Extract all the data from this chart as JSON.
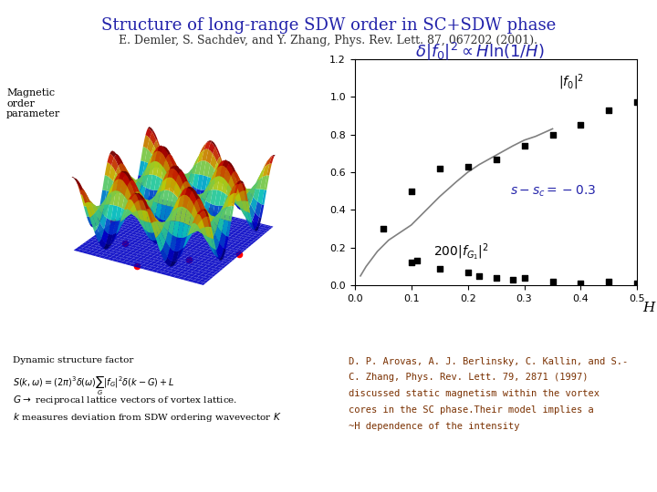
{
  "title": "Structure of long-range SDW order in SC+SDW phase",
  "subtitle": "E. Demler, S. Sachdev, and Y. Zhang, Phys. Rev. Lett. 87, 067202 (2001).",
  "bg_color": "#ffffff",
  "title_color": "#2222aa",
  "subtitle_color": "#333333",
  "magnetic_label": "Magnetic\norder\nparameter",
  "formula": "$\\delta|f_0|^2 \\propto H\\ln(1/H)$",
  "formula_color": "#2222aa",
  "scatter_f0_x": [
    0.05,
    0.1,
    0.15,
    0.2,
    0.25,
    0.3,
    0.35,
    0.4,
    0.45,
    0.5
  ],
  "scatter_f0_y": [
    0.3,
    0.5,
    0.62,
    0.63,
    0.67,
    0.74,
    0.8,
    0.85,
    0.93,
    0.97
  ],
  "curve_x": [
    0.01,
    0.02,
    0.04,
    0.06,
    0.08,
    0.1,
    0.12,
    0.15,
    0.18,
    0.2,
    0.22,
    0.25,
    0.28,
    0.3,
    0.32,
    0.35
  ],
  "curve_y": [
    0.05,
    0.1,
    0.18,
    0.24,
    0.28,
    0.32,
    0.38,
    0.47,
    0.55,
    0.6,
    0.64,
    0.69,
    0.74,
    0.77,
    0.79,
    0.83
  ],
  "scatter_fG1_x": [
    0.1,
    0.11,
    0.15,
    0.2,
    0.22,
    0.25,
    0.28,
    0.3,
    0.35,
    0.4,
    0.45,
    0.5
  ],
  "scatter_fG1_y": [
    0.12,
    0.13,
    0.09,
    0.07,
    0.05,
    0.04,
    0.03,
    0.04,
    0.02,
    0.01,
    0.02,
    0.01
  ],
  "xlabel": "H",
  "xlim": [
    0,
    0.5
  ],
  "ylim": [
    0,
    1.2
  ],
  "s_sc_label": "$s - s_c = -0.3$",
  "f0_label": "$|f_0|^2$",
  "fG1_label": "$200|f_{G_1}|^2$",
  "yticks": [
    0,
    0.2,
    0.4,
    0.6,
    0.8,
    1.0,
    1.2
  ],
  "xticks": [
    0,
    0.1,
    0.2,
    0.3,
    0.4,
    0.5
  ],
  "bottom_text_line1": "D. P. Arovas, A. J. Berlinsky, C. Kallin, and S.-",
  "bottom_text_line2": "C. Zhang, Phys. Rev. Lett. 79, 2871 (1997)",
  "bottom_text_line3": "discussed static magnetism within the vortex",
  "bottom_text_line4": "cores in the SC phase.Their model implies a",
  "bottom_text_line5": "~H dependence of the intensity",
  "left_bottom_text_0": "Dynamic structure factor",
  "left_bottom_text_1": "$S(k,\\omega)=(2\\pi)^3\\delta(\\omega)\\sum_G|f_G|^2\\delta(k-G)+L$",
  "left_bottom_text_2": "$G \\rightarrow$ reciprocal lattice vectors of vortex lattice.",
  "left_bottom_text_3": "$k$ measures deviation from SDW ordering wavevector $K$"
}
